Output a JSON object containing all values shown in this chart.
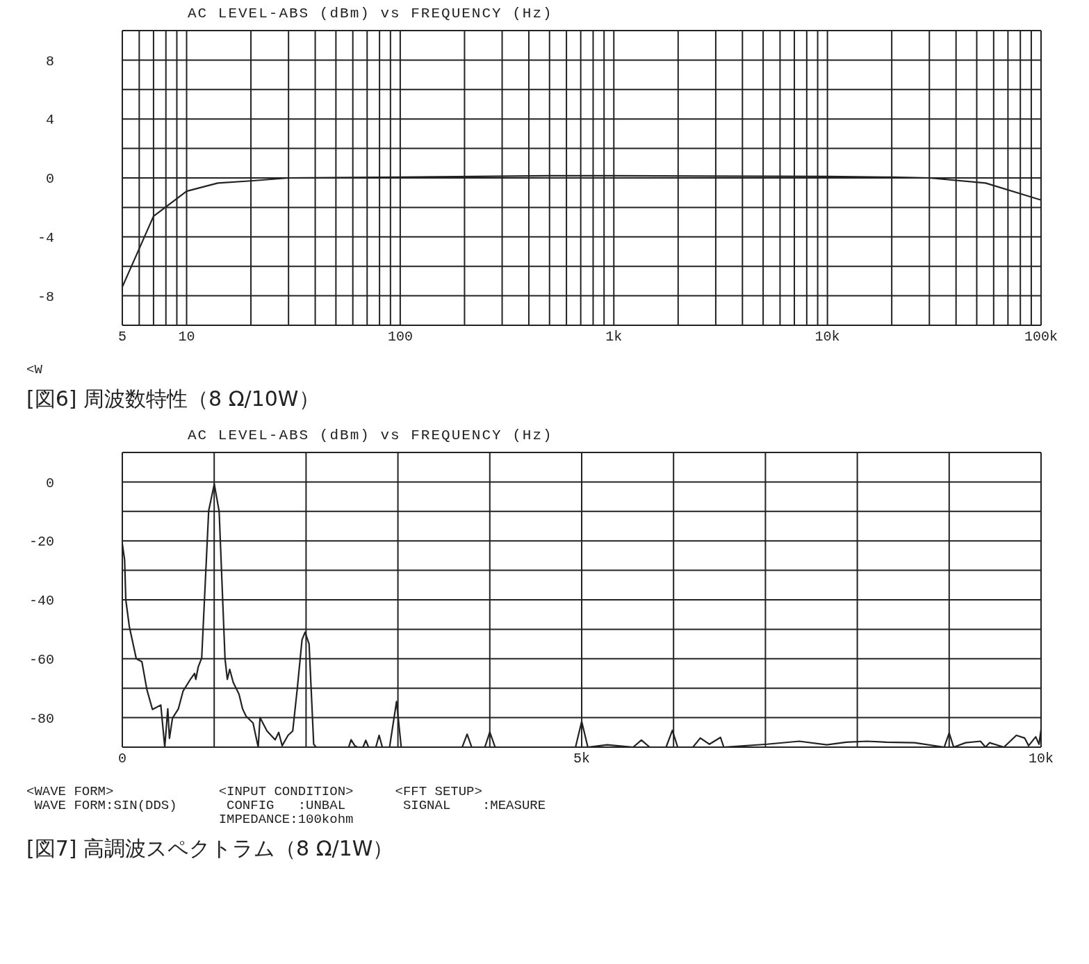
{
  "chart_data": [
    {
      "type": "line",
      "title": "AC LEVEL-ABS (dBm) vs FREQUENCY (Hz)",
      "annotations": [
        "<W",
        "[図6] 周波数特性（8 Ω/10W）"
      ],
      "log": "x",
      "grid": true,
      "marker": "none",
      "line_style": "solid",
      "xlim": [
        5,
        100000
      ],
      "ylim": [
        -10,
        10
      ],
      "xticks": [
        5,
        {
          "value": 6,
          "label": null
        },
        {
          "value": 7,
          "label": null
        },
        {
          "value": 8,
          "label": null
        },
        {
          "value": 9,
          "label": null
        },
        10,
        {
          "value": 20,
          "label": null
        },
        {
          "value": 30,
          "label": null
        },
        {
          "value": 40,
          "label": null
        },
        {
          "value": 50,
          "label": null
        },
        {
          "value": 60,
          "label": null
        },
        {
          "value": 70,
          "label": null
        },
        {
          "value": 80,
          "label": null
        },
        {
          "value": 90,
          "label": null
        },
        100,
        {
          "value": 200,
          "label": null
        },
        {
          "value": 300,
          "label": null
        },
        {
          "value": 400,
          "label": null
        },
        {
          "value": 500,
          "label": null
        },
        {
          "value": 600,
          "label": null
        },
        {
          "value": 700,
          "label": null
        },
        {
          "value": 800,
          "label": null
        },
        {
          "value": 900,
          "label": null
        },
        {
          "value": 1000,
          "label": "1k"
        },
        {
          "value": 2000,
          "label": null
        },
        {
          "value": 3000,
          "label": null
        },
        {
          "value": 4000,
          "label": null
        },
        {
          "value": 5000,
          "label": null
        },
        {
          "value": 6000,
          "label": null
        },
        {
          "value": 7000,
          "label": null
        },
        {
          "value": 8000,
          "label": null
        },
        {
          "value": 9000,
          "label": null
        },
        {
          "value": 10000,
          "label": "10k"
        },
        {
          "value": 20000,
          "label": null
        },
        {
          "value": 30000,
          "label": null
        },
        {
          "value": 40000,
          "label": null
        },
        {
          "value": 50000,
          "label": null
        },
        {
          "value": 60000,
          "label": null
        },
        {
          "value": 70000,
          "label": null
        },
        {
          "value": 80000,
          "label": null
        },
        {
          "value": 90000,
          "label": null
        },
        {
          "value": 100000,
          "label": "100k"
        }
      ],
      "yticks": [
        {
          "value": -10,
          "label": null
        },
        -8,
        {
          "value": -6,
          "label": null
        },
        -4,
        {
          "value": -2,
          "label": null
        },
        0,
        {
          "value": 2,
          "label": null
        },
        4,
        {
          "value": 6,
          "label": null
        },
        8,
        {
          "value": 10,
          "label": null
        }
      ],
      "series": [
        {
          "color": "#222222",
          "x": [
            5,
            7,
            10,
            14,
            20,
            30,
            100,
            500,
            1000,
            10000,
            20000,
            30000,
            55000,
            100000
          ],
          "values": [
            -7.4,
            -2.6,
            -0.9,
            -0.35,
            -0.2,
            0,
            0.05,
            0.15,
            0.15,
            0.1,
            0.05,
            0,
            -0.35,
            -1.5
          ]
        }
      ]
    },
    {
      "type": "line",
      "title": "AC LEVEL-ABS (dBm) vs FREQUENCY (Hz)",
      "annotations": [
        "<WAVE FORM>\n WAVE FORM:SIN(DDS)",
        "<INPUT CONDITION>\n CONFIG   :UNBAL\nIMPEDANCE:100kohm",
        "<FFT SETUP>\n SIGNAL    :MEASURE",
        "[図7] 高調波スペクトラム（8 Ω/1W）"
      ],
      "grid": true,
      "marker": "none",
      "line_style": "solid",
      "xlim": [
        0,
        10000
      ],
      "ylim": [
        -90,
        10
      ],
      "xticks": [
        0,
        {
          "value": 1000,
          "label": null
        },
        {
          "value": 2000,
          "label": null
        },
        {
          "value": 3000,
          "label": null
        },
        {
          "value": 4000,
          "label": null
        },
        {
          "value": 5000,
          "label": "5k"
        },
        {
          "value": 6000,
          "label": null
        },
        {
          "value": 7000,
          "label": null
        },
        {
          "value": 8000,
          "label": null
        },
        {
          "value": 9000,
          "label": null
        },
        {
          "value": 10000,
          "label": "10k"
        }
      ],
      "yticks": [
        {
          "value": -90,
          "label": null
        },
        -80,
        {
          "value": -70,
          "label": null
        },
        -60,
        {
          "value": -50,
          "label": null
        },
        -40,
        {
          "value": -30,
          "label": null
        },
        -20,
        {
          "value": -10,
          "label": null
        },
        0,
        {
          "value": 10,
          "label": null
        }
      ],
      "series": [
        {
          "color": "#222222",
          "x": [
            0,
            25,
            38,
            76,
            152,
            213,
            267,
            328,
            419,
            462,
            495,
            513,
            546,
            610,
            661,
            749,
            787,
            800,
            826,
            864,
            940,
            1001,
            1054,
            1118,
            1143,
            1169,
            1207,
            1270,
            1309,
            1347,
            1423,
            1479,
            1499,
            1575,
            1664,
            1702,
            1740,
            1804,
            1855,
            1905,
            1956,
            1989,
            2033,
            2083,
            2109,
            2464,
            2490,
            2530,
            2560,
            2620,
            2650,
            2680,
            2760,
            2795,
            2830,
            2909,
            2985,
            3036,
            3700,
            3753,
            3803,
            3946,
            4000,
            4058,
            4933,
            5000,
            5067,
            5278,
            5560,
            5650,
            5740,
            5919,
            5987,
            6045,
            6211,
            6291,
            6390,
            6511,
            6547,
            7018,
            7368,
            7668,
            7879,
            8103,
            8318,
            8623,
            8946,
            9000,
            9049,
            9179,
            9341,
            9395,
            9439,
            9596,
            9731,
            9821,
            9865,
            9942,
            9978,
            10000
          ],
          "values": [
            -21,
            -26.4,
            -40,
            -49,
            -60,
            -61,
            -70.4,
            -77.2,
            -75.7,
            -90,
            -77,
            -87,
            -80.2,
            -77,
            -71,
            -66.6,
            -65,
            -67,
            -62.8,
            -59.8,
            -9.8,
            -0.7,
            -10,
            -60,
            -67,
            -63.6,
            -68,
            -72,
            -77,
            -79.5,
            -81.8,
            -90,
            -80,
            -84.5,
            -87.5,
            -85,
            -89.5,
            -86,
            -84.5,
            -70,
            -53.6,
            -51,
            -55,
            -89,
            -90,
            -90,
            -87.5,
            -89.5,
            -90,
            -90,
            -87.7,
            -90,
            -90,
            -86,
            -90,
            -90,
            -74.5,
            -90,
            -90,
            -85.6,
            -90,
            -90,
            -84.9,
            -90,
            -90,
            -81.3,
            -90,
            -89.2,
            -90,
            -87.6,
            -90,
            -90,
            -84.3,
            -90,
            -90,
            -86.9,
            -89,
            -86.7,
            -90,
            -89,
            -88,
            -89.2,
            -88.3,
            -88,
            -88.3,
            -88.5,
            -90,
            -85.2,
            -90,
            -88.5,
            -88,
            -90,
            -88.5,
            -90,
            -86,
            -86.9,
            -89.5,
            -86.5,
            -89,
            -84
          ]
        }
      ]
    }
  ]
}
